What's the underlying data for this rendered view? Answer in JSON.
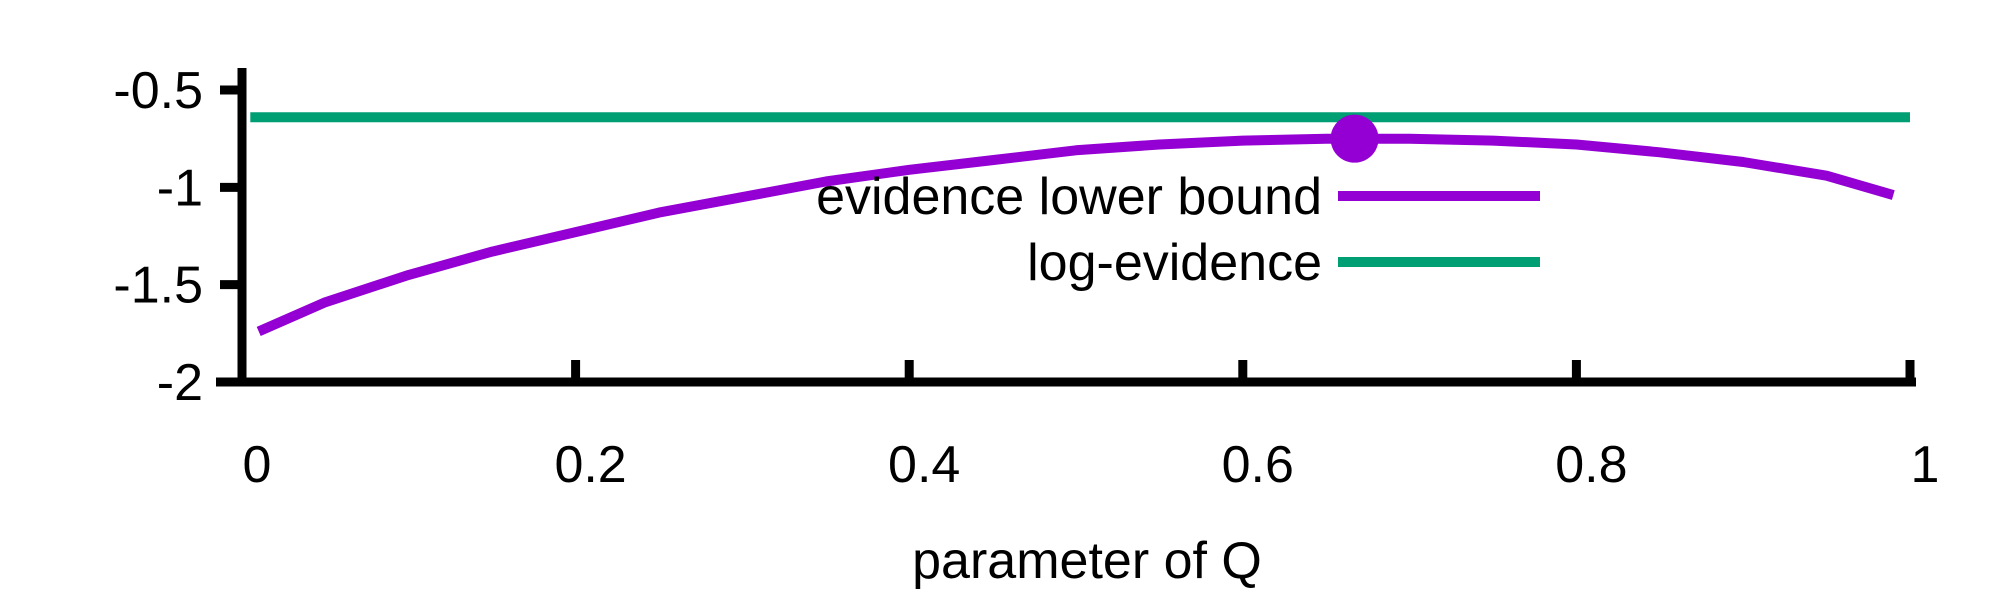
{
  "chart_data": {
    "type": "line",
    "title": "",
    "xlabel": "parameter of Q",
    "ylabel": "",
    "xlim": [
      0,
      1
    ],
    "ylim": [
      -2,
      -0.5
    ],
    "x_ticks": [
      0,
      0.2,
      0.4,
      0.6,
      0.8,
      1
    ],
    "x_tick_labels": [
      "0",
      "0.2",
      "0.4",
      "0.6",
      "0.8",
      "1"
    ],
    "y_ticks": [
      -2,
      -1.5,
      -1,
      -0.5
    ],
    "y_tick_labels": [
      "-2",
      "-1.5",
      "-1",
      "-0.5"
    ],
    "grid": false,
    "legend_position": "center-right",
    "series": [
      {
        "name": "evidence lower bound",
        "color": "#9400d3",
        "x": [
          0.01,
          0.05,
          0.1,
          0.15,
          0.2,
          0.25,
          0.3,
          0.35,
          0.4,
          0.45,
          0.5,
          0.55,
          0.6,
          0.65,
          0.667,
          0.7,
          0.75,
          0.8,
          0.85,
          0.9,
          0.95,
          0.99
        ],
        "y": [
          -1.74,
          -1.59,
          -1.45,
          -1.33,
          -1.23,
          -1.13,
          -1.05,
          -0.97,
          -0.91,
          -0.86,
          -0.81,
          -0.78,
          -0.76,
          -0.75,
          -0.75,
          -0.75,
          -0.76,
          -0.78,
          -0.82,
          -0.87,
          -0.94,
          -1.04
        ]
      },
      {
        "name": "log-evidence",
        "color": "#009e73",
        "x": [
          0.005,
          1.0
        ],
        "y": [
          -0.64,
          -0.64
        ]
      }
    ],
    "markers": [
      {
        "x": 0.667,
        "y": -0.75,
        "color": "#9400d3"
      }
    ]
  }
}
